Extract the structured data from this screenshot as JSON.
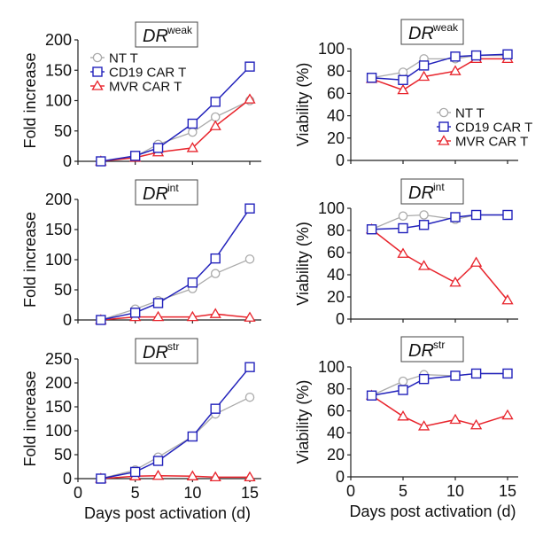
{
  "figure": {
    "x_label": "Days post activation (d)",
    "legend_labels": [
      "NT T",
      "CD19 CAR T",
      "MVR CAR T"
    ]
  },
  "chart_data": [
    {
      "id": "weak-fold",
      "type": "line",
      "title_main": "DR",
      "title_sup": "weak",
      "xlabel": "",
      "ylabel": "Fold increase",
      "xlim": [
        0,
        15
      ],
      "xticks": [
        0,
        5,
        10,
        15
      ],
      "xtick_labels_visible": false,
      "ylim": [
        0,
        200
      ],
      "yticks": [
        0,
        50,
        100,
        150,
        200
      ],
      "legend": "top-left",
      "x": [
        2,
        5,
        7,
        10,
        12,
        15
      ],
      "series": [
        {
          "name": "NT T",
          "marker": "circle",
          "color": "#aaaaaa",
          "values": [
            0,
            8,
            28,
            48,
            73,
            100
          ]
        },
        {
          "name": "CD19 CAR T",
          "marker": "square",
          "color": "#2222bb",
          "values": [
            0,
            9,
            22,
            62,
            98,
            156
          ]
        },
        {
          "name": "MVR CAR T",
          "marker": "triangle",
          "color": "#e8242c",
          "values": [
            0,
            6,
            15,
            22,
            58,
            102
          ]
        }
      ]
    },
    {
      "id": "weak-viab",
      "type": "line",
      "title_main": "DR",
      "title_sup": "weak",
      "xlabel": "",
      "ylabel": "Viability (%)",
      "xlim": [
        0,
        15
      ],
      "xticks": [
        0,
        5,
        10,
        15
      ],
      "xtick_labels_visible": false,
      "ylim": [
        0,
        100
      ],
      "yticks": [
        0,
        20,
        40,
        60,
        80,
        100
      ],
      "legend": "bottom-right",
      "x": [
        2,
        5,
        7,
        10,
        12,
        15
      ],
      "series": [
        {
          "name": "NT T",
          "marker": "circle",
          "color": "#aaaaaa",
          "values": [
            74,
            79,
            91,
            91,
            94,
            94
          ]
        },
        {
          "name": "CD19 CAR T",
          "marker": "square",
          "color": "#2222bb",
          "values": [
            74,
            72,
            85,
            93,
            94,
            95
          ]
        },
        {
          "name": "MVR CAR T",
          "marker": "triangle",
          "color": "#e8242c",
          "values": [
            73,
            63,
            75,
            80,
            91,
            91
          ]
        }
      ]
    },
    {
      "id": "int-fold",
      "type": "line",
      "title_main": "DR",
      "title_sup": "int",
      "xlabel": "",
      "ylabel": "Fold increase",
      "xlim": [
        0,
        15
      ],
      "xticks": [
        0,
        5,
        10,
        15
      ],
      "xtick_labels_visible": false,
      "ylim": [
        0,
        200
      ],
      "yticks": [
        0,
        50,
        100,
        150,
        200
      ],
      "legend": "none",
      "x": [
        2,
        5,
        7,
        10,
        12,
        15
      ],
      "series": [
        {
          "name": "NT T",
          "marker": "circle",
          "color": "#aaaaaa",
          "values": [
            0,
            18,
            32,
            52,
            77,
            101
          ]
        },
        {
          "name": "CD19 CAR T",
          "marker": "square",
          "color": "#2222bb",
          "values": [
            0,
            12,
            28,
            62,
            102,
            185
          ]
        },
        {
          "name": "MVR CAR T",
          "marker": "triangle",
          "color": "#e8242c",
          "values": [
            0,
            5,
            5,
            5,
            10,
            4
          ]
        }
      ]
    },
    {
      "id": "int-viab",
      "type": "line",
      "title_main": "DR",
      "title_sup": "int",
      "xlabel": "",
      "ylabel": "Viability (%)",
      "xlim": [
        0,
        15
      ],
      "xticks": [
        0,
        5,
        10,
        15
      ],
      "xtick_labels_visible": false,
      "ylim": [
        0,
        100
      ],
      "yticks": [
        0,
        20,
        40,
        60,
        80,
        100
      ],
      "legend": "none",
      "x": [
        2,
        5,
        7,
        10,
        12,
        15
      ],
      "series": [
        {
          "name": "NT T",
          "marker": "circle",
          "color": "#aaaaaa",
          "values": [
            81,
            93,
            94,
            90,
            94,
            94
          ]
        },
        {
          "name": "CD19 CAR T",
          "marker": "square",
          "color": "#2222bb",
          "values": [
            81,
            82,
            85,
            92,
            94,
            94
          ]
        },
        {
          "name": "MVR CAR T",
          "marker": "triangle",
          "color": "#e8242c",
          "values": [
            81,
            59,
            48,
            33,
            51,
            17
          ]
        }
      ]
    },
    {
      "id": "str-fold",
      "type": "line",
      "title_main": "DR",
      "title_sup": "str",
      "xlabel": "Days post activation (d)",
      "ylabel": "Fold increase",
      "xlim": [
        0,
        15
      ],
      "xticks": [
        0,
        5,
        10,
        15
      ],
      "xtick_labels_visible": true,
      "ylim": [
        0,
        250
      ],
      "yticks": [
        0,
        50,
        100,
        150,
        200,
        250
      ],
      "legend": "none",
      "x": [
        2,
        5,
        7,
        10,
        12,
        15
      ],
      "series": [
        {
          "name": "NT T",
          "marker": "circle",
          "color": "#aaaaaa",
          "values": [
            0,
            18,
            45,
            88,
            135,
            170
          ]
        },
        {
          "name": "CD19 CAR T",
          "marker": "square",
          "color": "#2222bb",
          "values": [
            0,
            14,
            37,
            88,
            146,
            233
          ]
        },
        {
          "name": "MVR CAR T",
          "marker": "triangle",
          "color": "#e8242c",
          "values": [
            0,
            5,
            6,
            5,
            3,
            3
          ]
        }
      ]
    },
    {
      "id": "str-viab",
      "type": "line",
      "title_main": "DR",
      "title_sup": "str",
      "xlabel": "Days post activation (d)",
      "ylabel": "Viability (%)",
      "xlim": [
        0,
        15
      ],
      "xticks": [
        0,
        5,
        10,
        15
      ],
      "xtick_labels_visible": true,
      "ylim": [
        0,
        100
      ],
      "yticks": [
        0,
        20,
        40,
        60,
        80,
        100
      ],
      "legend": "none",
      "x": [
        2,
        5,
        7,
        10,
        12,
        15
      ],
      "series": [
        {
          "name": "NT T",
          "marker": "circle",
          "color": "#aaaaaa",
          "values": [
            74,
            87,
            93,
            92,
            94,
            94
          ]
        },
        {
          "name": "CD19 CAR T",
          "marker": "square",
          "color": "#2222bb",
          "values": [
            74,
            79,
            89,
            92,
            94,
            94
          ]
        },
        {
          "name": "MVR CAR T",
          "marker": "triangle",
          "color": "#e8242c",
          "values": [
            74,
            55,
            46,
            52,
            47,
            56
          ]
        }
      ]
    }
  ]
}
